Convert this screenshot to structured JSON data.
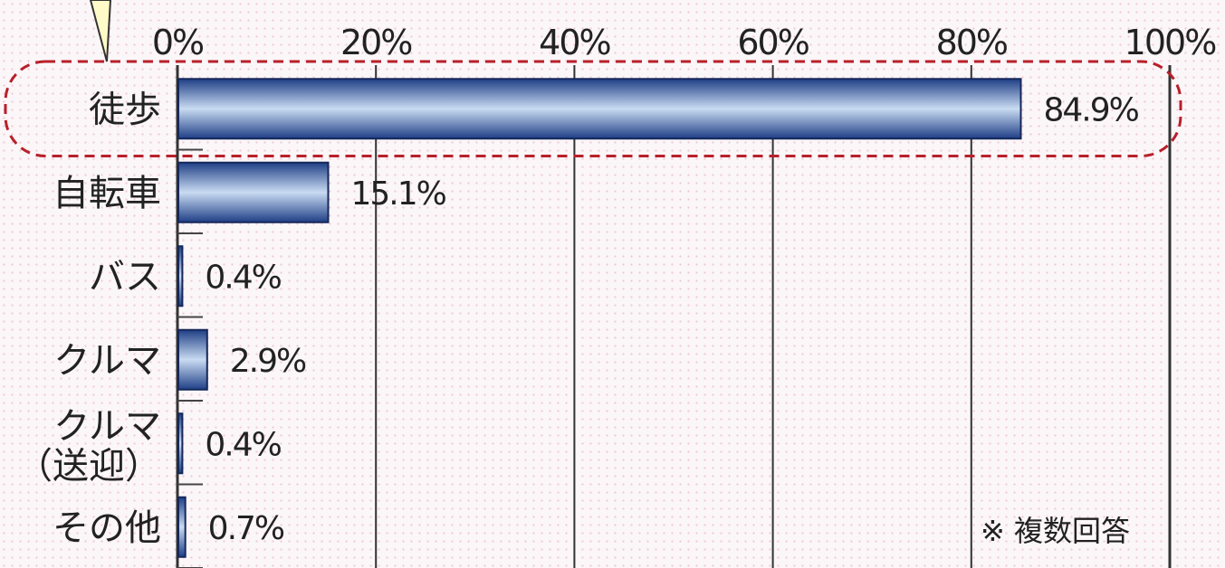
{
  "chart_data": {
    "type": "bar",
    "orientation": "horizontal",
    "categories": [
      "徒歩",
      "自転車",
      "バス",
      "クルマ",
      "クルマ\n（送迎）",
      "その他"
    ],
    "values": [
      84.9,
      15.1,
      0.4,
      2.9,
      0.4,
      0.7
    ],
    "value_labels": [
      "84.9%",
      "15.1%",
      "0.4%",
      "2.9%",
      "0.4%",
      "0.7%"
    ],
    "x_ticks": [
      "0%",
      "20%",
      "40%",
      "60%",
      "80%",
      "100%"
    ],
    "xlim": [
      0,
      100
    ],
    "grid": true,
    "highlighted_category": "徒歩",
    "note": "※ 複数回答",
    "colors": {
      "bar_dark": "#1f3f86",
      "bar_light": "#c9dbf2",
      "highlight": "#b8202a",
      "grid": "#333333"
    }
  }
}
